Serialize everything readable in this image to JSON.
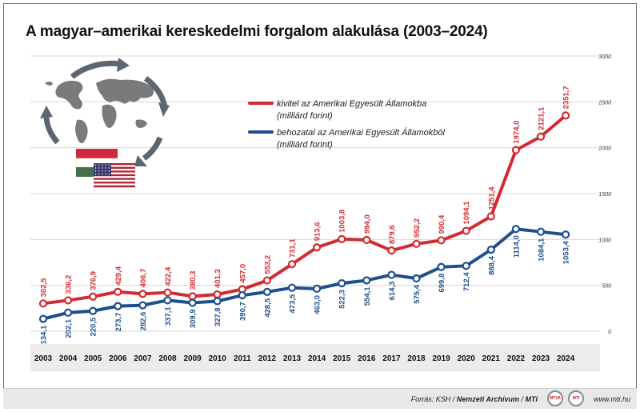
{
  "title": "A magyar–amerikai kereskedelmi forgalom alakulása (2003–2024)",
  "footer": {
    "source_prefix": "Forrás: KSH / ",
    "source_archive": "Nemzeti Archívum",
    "source_sep": " / ",
    "source_mti": "MTI",
    "logo1": "MTVA",
    "logo2": "MTI",
    "url": "www.mti.hu"
  },
  "colors": {
    "export": "#d42a31",
    "import": "#1f4f8c",
    "grid": "#d7d7d7",
    "xband": "#ececec"
  },
  "icons": [
    "world-map-icon",
    "cycle-arrows-icon",
    "hungarian-flag-icon",
    "us-flag-icon"
  ],
  "chart_data": {
    "type": "line",
    "x": [
      "2003",
      "2004",
      "2005",
      "2006",
      "2007",
      "2008",
      "2009",
      "2010",
      "2011",
      "2012",
      "2013",
      "2014",
      "2015",
      "2016",
      "2017",
      "2018",
      "2019",
      "2020",
      "2021",
      "2022",
      "2023",
      "2024"
    ],
    "yticks": [
      "0",
      "500",
      "1000",
      "1500",
      "2000",
      "2500",
      "3000"
    ],
    "ylim": [
      0,
      3000
    ],
    "series": [
      {
        "name_line1": "kivitel az Amerikai Egyesült Államokba",
        "name_line2": "(milliárd forint)",
        "values": [
          302.5,
          336.2,
          376.9,
          429.4,
          406.7,
          422.4,
          380.3,
          401.3,
          457.0,
          553.2,
          731.1,
          913.6,
          1003.8,
          994.0,
          879.6,
          952.2,
          990.4,
          1094.1,
          1251.4,
          1974.0,
          2121.1,
          2351.7
        ],
        "labels": [
          "302,5",
          "336,2",
          "376,9",
          "429,4",
          "406,7",
          "422,4",
          "380,3",
          "401,3",
          "457,0",
          "553,2",
          "731,1",
          "913,6",
          "1003,8",
          "994,0",
          "879,6",
          "952,2",
          "990,4",
          "1094,1",
          "1251,4",
          "1974,0",
          "2121,1",
          "2351,7"
        ]
      },
      {
        "name_line1": "behozatal az Amerikai Egyesült Államokból",
        "name_line2": "(milliárd forint)",
        "values": [
          134.1,
          202.1,
          220.5,
          273.7,
          282.6,
          337.1,
          309.9,
          327.8,
          390.7,
          428.5,
          473.5,
          463.0,
          522.3,
          554.1,
          614.3,
          575.4,
          699.8,
          712.4,
          888.4,
          1114.0,
          1084.1,
          1053.4
        ],
        "labels": [
          "134,1",
          "202,1",
          "220,5",
          "273,7",
          "282,6",
          "337,1",
          "309,9",
          "327,8",
          "390,7",
          "428,5",
          "473,5",
          "463,0",
          "522,3",
          "554,1",
          "614,3",
          "575,4",
          "699,8",
          "712,4",
          "888,4",
          "1114,0",
          "1084,1",
          "1053,4"
        ]
      }
    ]
  }
}
